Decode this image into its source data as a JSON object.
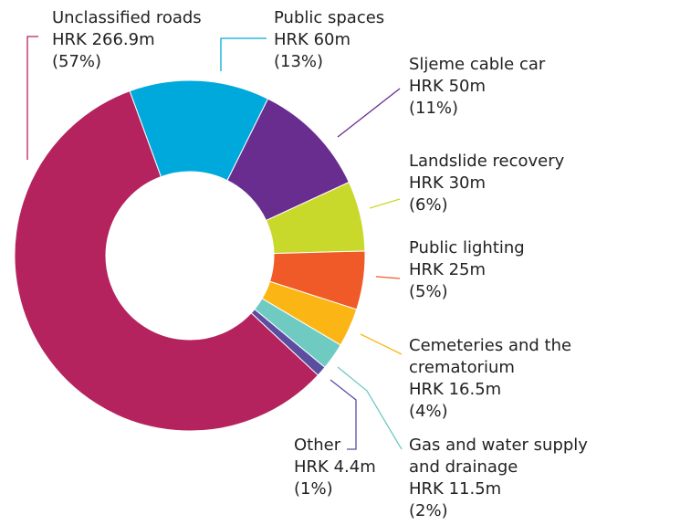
{
  "chart_data": {
    "type": "donut",
    "categories": [
      "Unclassified roads",
      "Public spaces",
      "Sljeme cable car",
      "Landslide recovery",
      "Public lighting",
      "Cemeteries and the crematorium",
      "Gas and water supply and drainage",
      "Other"
    ],
    "values": [
      266.9,
      60,
      50,
      30,
      25,
      16.5,
      11.5,
      4.4
    ],
    "value_labels": [
      "HRK 266.9m",
      "HRK 60m",
      "HRK 50m",
      "HRK 30m",
      "HRK 25m",
      "HRK 16.5m",
      "HRK 11.5m",
      "HRK 4.4m"
    ],
    "percentages": [
      57,
      13,
      11,
      6,
      5,
      4,
      2,
      1
    ],
    "percentage_labels": [
      "(57%)",
      "(13%)",
      "(11%)",
      "(6%)",
      "(5%)",
      "(4%)",
      "(2%)",
      "(1%)"
    ],
    "colors": [
      "#b5235f",
      "#00a9dc",
      "#682d8f",
      "#c9d92c",
      "#f05a28",
      "#fbb616",
      "#6fcbc2",
      "#5b4ea0"
    ]
  }
}
